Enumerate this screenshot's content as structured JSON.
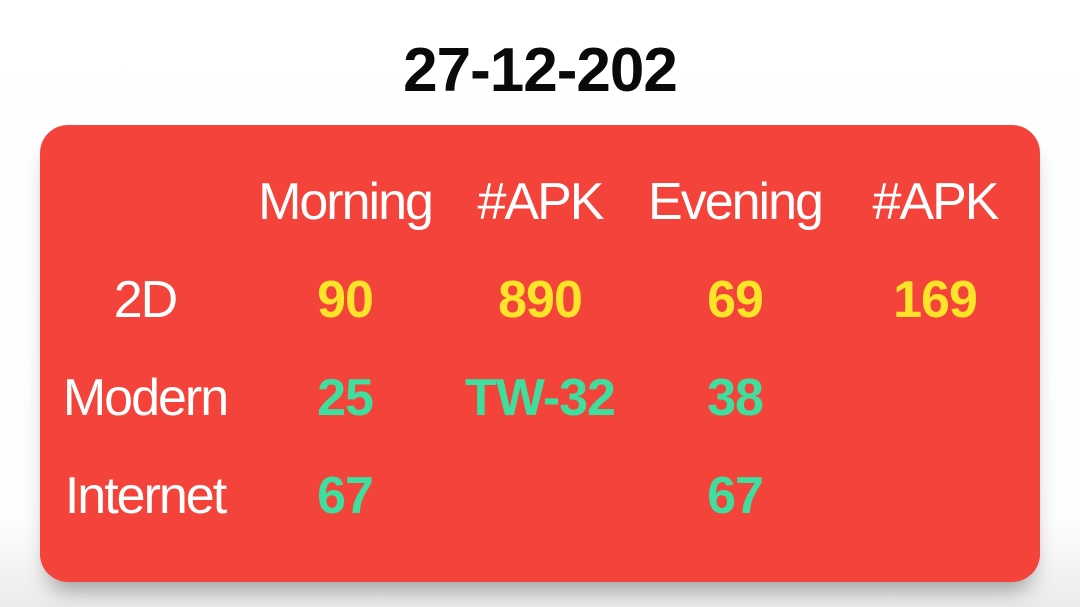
{
  "page": {
    "title": "27-12-202"
  },
  "colors": {
    "card-red": "#f4433a",
    "yellow": "#fde428",
    "green": "#3ede9e",
    "header-white": "#ffffff",
    "title-black": "#0a0a0a"
  },
  "card": {
    "header_columns": [
      "Morning",
      "#APK",
      "Evening",
      "#APK"
    ],
    "rows": [
      {
        "label": "2D",
        "value_color": "yellow",
        "values": [
          "90",
          "890",
          "69",
          "169"
        ]
      },
      {
        "label": "Modern",
        "value_color": "green",
        "values": [
          "25",
          "TW-32",
          "38",
          ""
        ]
      },
      {
        "label": "Internet",
        "value_color": "green",
        "values": [
          "67",
          "",
          "67",
          ""
        ]
      }
    ]
  }
}
